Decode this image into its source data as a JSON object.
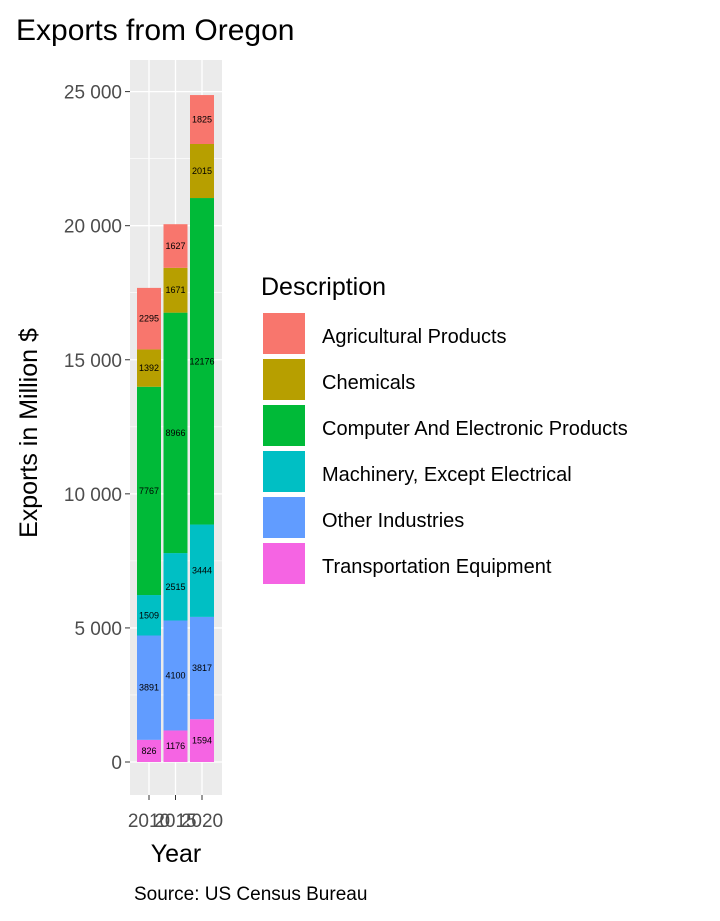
{
  "chart_data": {
    "type": "bar",
    "stacked": true,
    "title": "Exports from Oregon",
    "xlabel": "Year",
    "ylabel": "Exports in Million $",
    "caption": "Source: US Census Bureau",
    "x_tick_labels": [
      "2010",
      "2015",
      "2020"
    ],
    "categories": [
      "2010",
      "2015",
      "2020"
    ],
    "ylim": [
      -1200,
      26000
    ],
    "y_ticks": [
      0,
      5000,
      10000,
      15000,
      20000,
      25000
    ],
    "y_tick_labels": [
      "0",
      "5 000",
      "10 000",
      "15 000",
      "20 000",
      "25 000"
    ],
    "grid": true,
    "legend": {
      "title": "Description",
      "position": "right"
    },
    "series": [
      {
        "name": "Transportation Equipment",
        "color": "#F564E3",
        "values": [
          826,
          1176,
          1594
        ]
      },
      {
        "name": "Other Industries",
        "color": "#619CFF",
        "values": [
          3891,
          4100,
          3817
        ]
      },
      {
        "name": "Machinery, Except Electrical",
        "color": "#00BFC4",
        "values": [
          1509,
          2515,
          3444
        ]
      },
      {
        "name": "Computer And Electronic Products",
        "color": "#00BA38",
        "values": [
          7767,
          8966,
          12176
        ]
      },
      {
        "name": "Chemicals",
        "color": "#B79F00",
        "values": [
          1392,
          1671,
          2015
        ]
      },
      {
        "name": "Agricultural Products",
        "color": "#F8766D",
        "values": [
          2295,
          1627,
          1825
        ]
      }
    ],
    "legend_order": [
      "Agricultural Products",
      "Chemicals",
      "Computer And Electronic Products",
      "Machinery, Except Electrical",
      "Other Industries",
      "Transportation Equipment"
    ],
    "colors": {
      "panel_background": "#EBEBEB",
      "grid": "#FFFFFF",
      "tick": "#333333"
    }
  }
}
